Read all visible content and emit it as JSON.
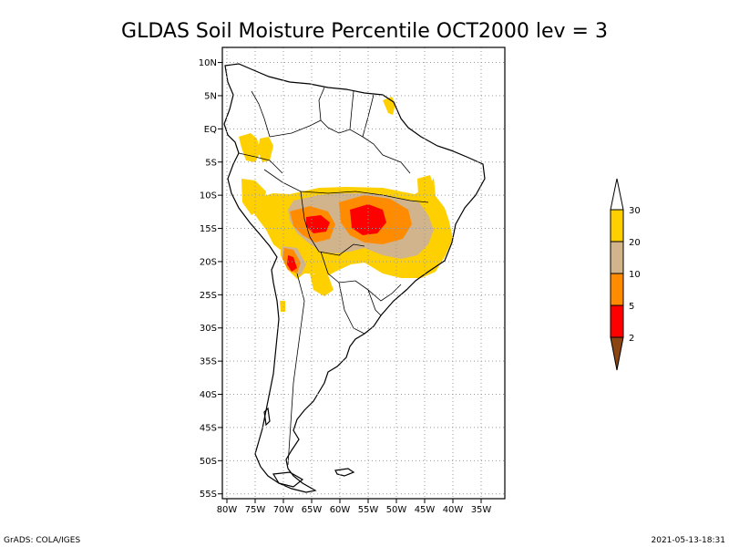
{
  "title": "GLDAS Soil Moisture Percentile OCT2000 lev = 3",
  "footer_left": "GrADS: COLA/IGES",
  "footer_right": "2021-05-13-18:31",
  "map": {
    "lon_range": [
      -80,
      -30
    ],
    "lat_range": [
      -56,
      12
    ],
    "lat_ticks": [
      "10N",
      "5N",
      "EQ",
      "5S",
      "10S",
      "15S",
      "20S",
      "25S",
      "30S",
      "35S",
      "40S",
      "45S",
      "50S",
      "55S"
    ],
    "lat_values": [
      10,
      5,
      0,
      -5,
      -10,
      -15,
      -20,
      -25,
      -30,
      -35,
      -40,
      -45,
      -50,
      -55
    ],
    "lon_ticks": [
      "80W",
      "75W",
      "70W",
      "65W",
      "60W",
      "55W",
      "50W",
      "45W",
      "40W",
      "35W"
    ],
    "lon_values": [
      -80,
      -75,
      -70,
      -65,
      -60,
      -55,
      -50,
      -45,
      -40,
      -35
    ]
  },
  "legend": {
    "labels": [
      "30",
      "20",
      "10",
      "5",
      "2"
    ],
    "colors": {
      "above_30": "#ffffff",
      "c20_30": "#ffd000",
      "c10_20": "#d2b48c",
      "c5_10": "#ff8c00",
      "c2_5": "#ff0000",
      "below_2": "#8b4513"
    }
  }
}
